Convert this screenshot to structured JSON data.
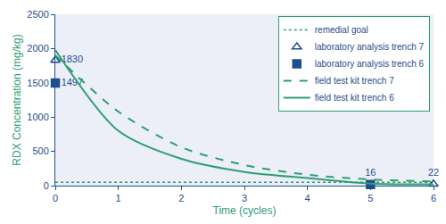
{
  "chart_data": {
    "type": "line",
    "x_label": "Time (cycles)",
    "y_label": "RDX Concentration (mg/kg)",
    "xlim": [
      0,
      6
    ],
    "xticks": [
      0,
      1,
      2,
      3,
      4,
      5,
      6
    ],
    "ylim": [
      0,
      2500
    ],
    "yticks": [
      0,
      500,
      1000,
      1500,
      2000,
      2500
    ],
    "grid": false,
    "legend": "upper right",
    "series": [
      {
        "name": "remedial goal",
        "color": "#2e9e74",
        "line_style": "dotted",
        "marker": "none",
        "x": [
          0,
          6
        ],
        "values": [
          50,
          50
        ]
      },
      {
        "name": "laboratory analysis trench 7",
        "color": "#1f4e8c",
        "line_style": "none",
        "marker": "triangle-open",
        "x": [
          0,
          6
        ],
        "values": [
          1830,
          22
        ],
        "data_labels": true
      },
      {
        "name": "laboratory analysis trench 6",
        "color": "#1f4e8c",
        "line_style": "none",
        "marker": "square",
        "x": [
          0,
          5
        ],
        "values": [
          1497,
          16
        ],
        "data_labels": true
      },
      {
        "name": "field test kit trench 7",
        "color": "#2e9e74",
        "line_style": "dashed",
        "marker": "none",
        "x": [
          0,
          1,
          2,
          3,
          4,
          5,
          6
        ],
        "values": [
          1900,
          1080,
          560,
          300,
          160,
          90,
          60
        ]
      },
      {
        "name": "field test kit trench 6",
        "color": "#2e9e74",
        "line_style": "solid",
        "marker": "none",
        "x": [
          0,
          1,
          2,
          3,
          4,
          5,
          6
        ],
        "values": [
          1980,
          800,
          390,
          200,
          110,
          30,
          20
        ]
      }
    ]
  }
}
